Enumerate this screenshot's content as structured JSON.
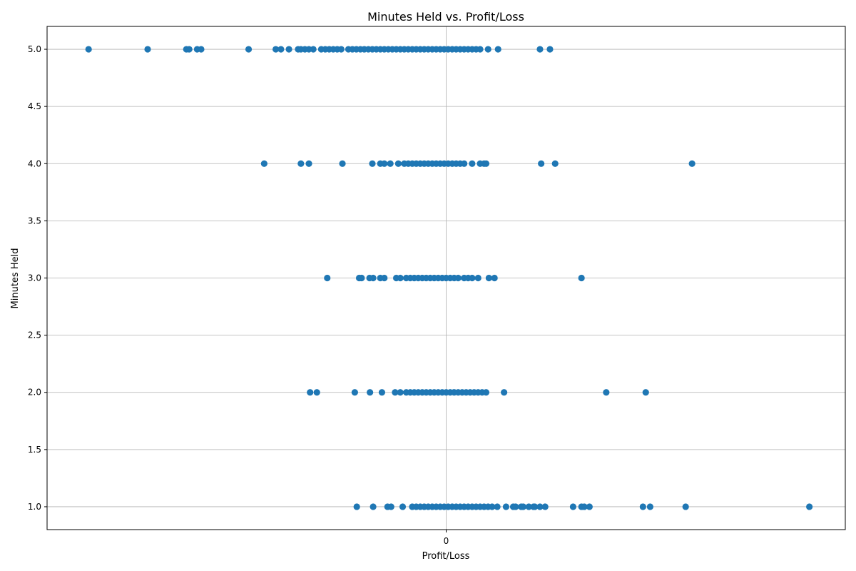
{
  "chart_data": {
    "type": "scatter",
    "title": "Minutes Held vs. Profit/Loss",
    "xlabel": "Profit/Loss",
    "ylabel": "Minutes Held",
    "xlim": [
      -100,
      100
    ],
    "ylim": [
      0.8,
      5.2
    ],
    "x_ticks": [
      {
        "value": 0,
        "label": "0"
      }
    ],
    "y_ticks": [
      {
        "value": 1.0,
        "label": "1.0"
      },
      {
        "value": 1.5,
        "label": "1.5"
      },
      {
        "value": 2.0,
        "label": "2.0"
      },
      {
        "value": 2.5,
        "label": "2.5"
      },
      {
        "value": 3.0,
        "label": "3.0"
      },
      {
        "value": 3.5,
        "label": "3.5"
      },
      {
        "value": 4.0,
        "label": "4.0"
      },
      {
        "value": 4.5,
        "label": "4.5"
      },
      {
        "value": 5.0,
        "label": "5.0"
      }
    ],
    "grid": true,
    "marker_color": "#1f77b4",
    "series": [
      {
        "points": [
          [
            -89.6,
            5
          ],
          [
            -74.8,
            5
          ],
          [
            -65.1,
            5
          ],
          [
            -64.4,
            5
          ],
          [
            -62.4,
            5
          ],
          [
            -61.4,
            5
          ],
          [
            -49.5,
            5
          ],
          [
            -42.7,
            5
          ],
          [
            -41.4,
            5
          ],
          [
            -39.4,
            5
          ],
          [
            -37.1,
            5
          ],
          [
            -36.4,
            5
          ],
          [
            -35.4,
            5
          ],
          [
            -34.4,
            5
          ],
          [
            -33.3,
            5
          ],
          [
            -31.3,
            5
          ],
          [
            -30.3,
            5
          ],
          [
            -29.3,
            5
          ],
          [
            -28.3,
            5
          ],
          [
            -27.3,
            5
          ],
          [
            -26.3,
            5
          ],
          [
            -24.5,
            5
          ],
          [
            -23.5,
            5
          ],
          [
            -22.5,
            5
          ],
          [
            -21.5,
            5
          ],
          [
            -20.5,
            5
          ],
          [
            -19.5,
            5
          ],
          [
            -18.5,
            5
          ],
          [
            -17.5,
            5
          ],
          [
            -16.5,
            5
          ],
          [
            -15.5,
            5
          ],
          [
            -14.5,
            5
          ],
          [
            -13.5,
            5
          ],
          [
            -12.5,
            5
          ],
          [
            -11.5,
            5
          ],
          [
            -10.5,
            5
          ],
          [
            -9.5,
            5
          ],
          [
            -8.5,
            5
          ],
          [
            -7.5,
            5
          ],
          [
            -6.5,
            5
          ],
          [
            -5.5,
            5
          ],
          [
            -4.5,
            5
          ],
          [
            -3.5,
            5
          ],
          [
            -2.5,
            5
          ],
          [
            -1.5,
            5
          ],
          [
            -0.5,
            5
          ],
          [
            0.5,
            5
          ],
          [
            1.5,
            5
          ],
          [
            2.5,
            5
          ],
          [
            3.5,
            5
          ],
          [
            4.5,
            5
          ],
          [
            5.5,
            5
          ],
          [
            6.5,
            5
          ],
          [
            7.5,
            5
          ],
          [
            8.5,
            5
          ],
          [
            10.5,
            5
          ],
          [
            13.0,
            5
          ],
          [
            23.5,
            5
          ],
          [
            26.0,
            5
          ],
          [
            -45.6,
            4
          ],
          [
            -36.4,
            4
          ],
          [
            -34.4,
            4
          ],
          [
            -26.0,
            4
          ],
          [
            -18.5,
            4
          ],
          [
            -16.5,
            4
          ],
          [
            -15.5,
            4
          ],
          [
            -14.0,
            4
          ],
          [
            -12.0,
            4
          ],
          [
            -10.5,
            4
          ],
          [
            -9.5,
            4
          ],
          [
            -8.5,
            4
          ],
          [
            -7.5,
            4
          ],
          [
            -6.5,
            4
          ],
          [
            -5.5,
            4
          ],
          [
            -4.5,
            4
          ],
          [
            -3.5,
            4
          ],
          [
            -2.5,
            4
          ],
          [
            -1.5,
            4
          ],
          [
            -0.5,
            4
          ],
          [
            0.5,
            4
          ],
          [
            1.5,
            4
          ],
          [
            2.5,
            4
          ],
          [
            3.5,
            4
          ],
          [
            4.5,
            4
          ],
          [
            6.5,
            4
          ],
          [
            8.5,
            4
          ],
          [
            9.5,
            4
          ],
          [
            10.0,
            4
          ],
          [
            23.8,
            4
          ],
          [
            27.3,
            4
          ],
          [
            61.6,
            4
          ],
          [
            -29.8,
            3
          ],
          [
            -21.8,
            3
          ],
          [
            -21.2,
            3
          ],
          [
            -19.2,
            3
          ],
          [
            -18.3,
            3
          ],
          [
            -16.5,
            3
          ],
          [
            -15.5,
            3
          ],
          [
            -12.5,
            3
          ],
          [
            -11.5,
            3
          ],
          [
            -10.0,
            3
          ],
          [
            -9.0,
            3
          ],
          [
            -8.0,
            3
          ],
          [
            -7.0,
            3
          ],
          [
            -6.0,
            3
          ],
          [
            -5.0,
            3
          ],
          [
            -4.0,
            3
          ],
          [
            -3.0,
            3
          ],
          [
            -2.0,
            3
          ],
          [
            -1.0,
            3
          ],
          [
            0.0,
            3
          ],
          [
            1.0,
            3
          ],
          [
            2.0,
            3
          ],
          [
            3.0,
            3
          ],
          [
            4.5,
            3
          ],
          [
            5.5,
            3
          ],
          [
            6.5,
            3
          ],
          [
            8.0,
            3
          ],
          [
            10.7,
            3
          ],
          [
            12.1,
            3
          ],
          [
            33.9,
            3
          ],
          [
            -34.1,
            2
          ],
          [
            -32.4,
            2
          ],
          [
            -22.9,
            2
          ],
          [
            -19.1,
            2
          ],
          [
            -16.1,
            2
          ],
          [
            -12.8,
            2
          ],
          [
            -11.5,
            2
          ],
          [
            -10.0,
            2
          ],
          [
            -9.0,
            2
          ],
          [
            -8.0,
            2
          ],
          [
            -7.0,
            2
          ],
          [
            -6.0,
            2
          ],
          [
            -5.0,
            2
          ],
          [
            -4.0,
            2
          ],
          [
            -3.0,
            2
          ],
          [
            -2.0,
            2
          ],
          [
            -1.0,
            2
          ],
          [
            0.0,
            2
          ],
          [
            1.0,
            2
          ],
          [
            2.0,
            2
          ],
          [
            3.0,
            2
          ],
          [
            4.0,
            2
          ],
          [
            5.0,
            2
          ],
          [
            6.0,
            2
          ],
          [
            7.0,
            2
          ],
          [
            8.0,
            2
          ],
          [
            9.0,
            2
          ],
          [
            10.0,
            2
          ],
          [
            14.5,
            2
          ],
          [
            40.1,
            2
          ],
          [
            50.0,
            2
          ],
          [
            -22.4,
            1
          ],
          [
            -18.3,
            1
          ],
          [
            -14.7,
            1
          ],
          [
            -13.8,
            1
          ],
          [
            -10.9,
            1
          ],
          [
            -8.5,
            1
          ],
          [
            -7.5,
            1
          ],
          [
            -6.5,
            1
          ],
          [
            -5.5,
            1
          ],
          [
            -4.5,
            1
          ],
          [
            -3.5,
            1
          ],
          [
            -2.5,
            1
          ],
          [
            -1.5,
            1
          ],
          [
            -0.5,
            1
          ],
          [
            0.5,
            1
          ],
          [
            1.5,
            1
          ],
          [
            2.5,
            1
          ],
          [
            3.5,
            1
          ],
          [
            4.5,
            1
          ],
          [
            5.5,
            1
          ],
          [
            6.5,
            1
          ],
          [
            7.5,
            1
          ],
          [
            8.5,
            1
          ],
          [
            9.5,
            1
          ],
          [
            10.5,
            1
          ],
          [
            11.5,
            1
          ],
          [
            12.8,
            1
          ],
          [
            15.0,
            1
          ],
          [
            16.8,
            1
          ],
          [
            17.4,
            1
          ],
          [
            18.8,
            1
          ],
          [
            19.3,
            1
          ],
          [
            20.7,
            1
          ],
          [
            21.9,
            1
          ],
          [
            22.2,
            1
          ],
          [
            23.5,
            1
          ],
          [
            24.8,
            1
          ],
          [
            31.8,
            1
          ],
          [
            33.9,
            1
          ],
          [
            34.6,
            1
          ],
          [
            35.9,
            1
          ],
          [
            49.3,
            1
          ],
          [
            51.1,
            1
          ],
          [
            60.0,
            1
          ],
          [
            91.0,
            1
          ]
        ]
      }
    ]
  }
}
